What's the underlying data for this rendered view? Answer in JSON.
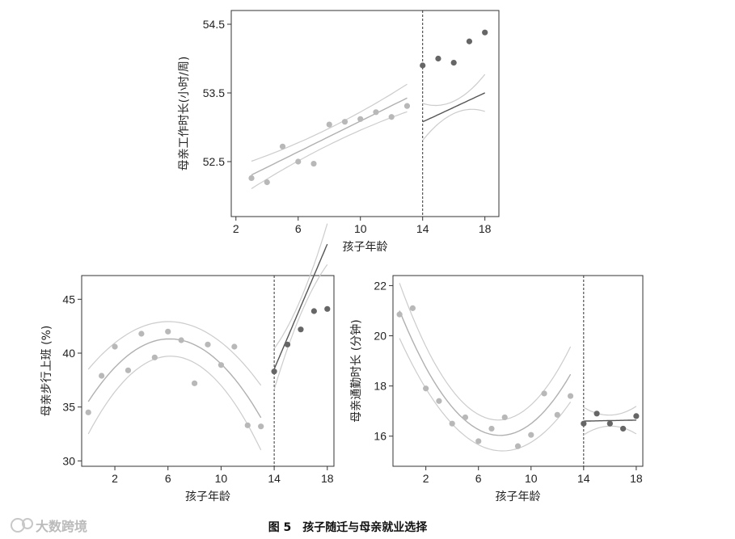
{
  "figure": {
    "caption": "图 5　孩子随迁与母亲就业选择",
    "watermark": "大数跨境"
  },
  "colors": {
    "pre_point": "#b8b8b8",
    "post_point": "#666666",
    "pre_fit": "#b0b0b0",
    "post_fit": "#555555",
    "ci": "#cccccc",
    "axis": "#333333",
    "cutoff": "#333333"
  },
  "chart_data": [
    {
      "id": "hours",
      "type": "scatter",
      "xlabel": "孩子年龄",
      "ylabel": "母亲工作时长(小时/周)",
      "xlim": [
        1.7,
        18.9
      ],
      "ylim": [
        51.7,
        54.7
      ],
      "xticks": [
        2,
        6,
        10,
        14,
        18
      ],
      "yticks": [
        52.5,
        53.5,
        54.5
      ],
      "ytick_labels": [
        "52.5",
        "53.5",
        "54.5"
      ],
      "cutoff": 14,
      "pre": {
        "x": [
          3,
          4,
          5,
          6,
          7,
          8,
          9,
          10,
          11,
          12,
          13
        ],
        "y": [
          52.26,
          52.2,
          52.72,
          52.5,
          52.47,
          53.04,
          53.08,
          53.12,
          53.22,
          53.15,
          53.31
        ],
        "fit": {
          "order": 1,
          "coef": [
            51.97,
            0.112
          ]
        },
        "ci_half": [
          0.2,
          0.12,
          0.2
        ]
      },
      "post": {
        "x": [
          14,
          15,
          16,
          17,
          18
        ],
        "y": [
          53.9,
          54.0,
          53.94,
          54.25,
          54.38
        ],
        "fit": {
          "order": 1,
          "coef": [
            51.6,
            0.1056
          ]
        },
        "ci_half": [
          0.27,
          0.09,
          0.24
        ]
      }
    },
    {
      "id": "walk",
      "type": "scatter",
      "xlabel": "孩子年龄",
      "ylabel": "母亲步行上班 (%)",
      "xlim": [
        -0.5,
        18.5
      ],
      "ylim": [
        29.5,
        47.2
      ],
      "xticks": [
        2,
        6,
        10,
        14,
        18
      ],
      "yticks": [
        30,
        35,
        40,
        45
      ],
      "ytick_labels": [
        "30",
        "35",
        "40",
        "45"
      ],
      "cutoff": 14,
      "pre": {
        "x": [
          0,
          1,
          2,
          3,
          4,
          5,
          6,
          7,
          8,
          9,
          10,
          11,
          12,
          13
        ],
        "y": [
          34.5,
          37.9,
          40.6,
          38.4,
          41.8,
          39.6,
          42.0,
          41.2,
          37.2,
          40.8,
          38.9,
          40.6,
          33.3,
          33.2
        ],
        "fit": {
          "order": 2,
          "coef": [
            35.5,
            1.9,
            -0.155
          ]
        },
        "ci_half": [
          3.0,
          1.6,
          3.0
        ]
      },
      "post": {
        "x": [
          14,
          15,
          16,
          17,
          18
        ],
        "y": [
          38.3,
          40.8,
          42.2,
          43.9,
          44.1
        ],
        "fit": {
          "order": 1,
          "coef": [
            -2.08,
            2.9
          ]
        },
        "ci_half": [
          1.9,
          0.7,
          1.9
        ]
      }
    },
    {
      "id": "commute",
      "type": "scatter",
      "xlabel": "孩子年龄",
      "ylabel": "母亲通勤时长 (分钟)",
      "xlim": [
        -0.5,
        18.5
      ],
      "ylim": [
        14.8,
        22.4
      ],
      "xticks": [
        2,
        6,
        10,
        14,
        18
      ],
      "yticks": [
        16,
        18,
        20,
        22
      ],
      "ytick_labels": [
        "16",
        "18",
        "20",
        "22"
      ],
      "cutoff": 14,
      "pre": {
        "x": [
          0,
          1,
          2,
          3,
          4,
          5,
          6,
          7,
          8,
          9,
          10,
          11,
          12,
          13
        ],
        "y": [
          20.85,
          21.1,
          17.9,
          17.4,
          16.5,
          16.75,
          15.8,
          16.3,
          16.75,
          15.6,
          16.05,
          17.7,
          16.85,
          17.6
        ],
        "fit": {
          "order": 2,
          "coef": [
            21.0,
            -1.3,
            0.085
          ]
        },
        "ci_half": [
          1.1,
          0.6,
          1.1
        ]
      },
      "post": {
        "x": [
          14,
          15,
          16,
          17,
          18
        ],
        "y": [
          16.5,
          16.9,
          16.5,
          16.3,
          16.8
        ],
        "fit": {
          "order": 1,
          "coef": [
            16.46,
            0.01
          ]
        },
        "ci_half": [
          0.55,
          0.22,
          0.55
        ]
      }
    }
  ]
}
